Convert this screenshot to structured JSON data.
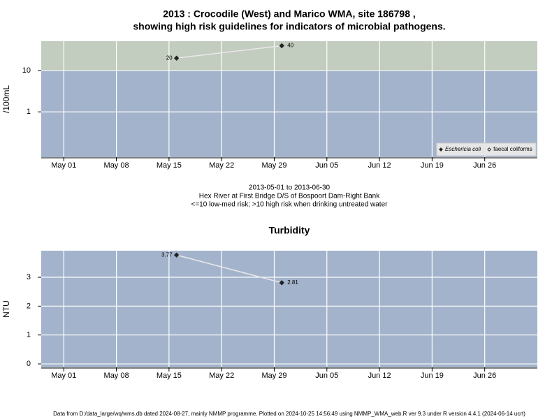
{
  "chart_data": [
    {
      "type": "line",
      "title": [
        "2013 : Crocodile (West) and Marico WMA, site 186798 ,",
        "showing high risk guidelines for indicators of microbial pathogens."
      ],
      "y_label": "/100mL",
      "log_scale": true,
      "x": [
        "2013-05-16",
        "2013-05-30"
      ],
      "series": [
        {
          "name": "Eschericia coli",
          "color": "#222222",
          "marker": "filled",
          "values": [
            20,
            40
          ]
        },
        {
          "name": "faecal coliforms",
          "color": "#222222",
          "marker": "open",
          "values": [
            null,
            null
          ]
        }
      ],
      "xlim": [
        "2013-04-28",
        "2013-07-03"
      ],
      "xticks": [
        {
          "value": "2013-05-01",
          "label": "May 01"
        },
        {
          "value": "2013-05-08",
          "label": "May 08"
        },
        {
          "value": "2013-05-15",
          "label": "May 15"
        },
        {
          "value": "2013-05-22",
          "label": "May 22"
        },
        {
          "value": "2013-05-29",
          "label": "May 29"
        },
        {
          "value": "2013-06-05",
          "label": "Jun 05"
        },
        {
          "value": "2013-06-12",
          "label": "Jun 12"
        },
        {
          "value": "2013-06-19",
          "label": "Jun 19"
        },
        {
          "value": "2013-06-26",
          "label": "Jun 26"
        }
      ],
      "ylim": [
        0.08,
        51.5
      ],
      "yticks": [
        1,
        10
      ],
      "threshold": 10,
      "band_colors": {
        "below": "#a3b3cb",
        "above": "#c2ccbf"
      },
      "grid": true,
      "legend": "bottom right",
      "notes": [
        "2013-05-01 to 2013-06-30",
        "Hex River at First Bridge D/S of Bospoort Dam-Right Bank",
        "<=10 low-med risk; >10 high risk when drinking untreated water"
      ]
    },
    {
      "type": "line",
      "title": [
        "Turbidity"
      ],
      "y_label": "NTU",
      "log_scale": false,
      "x": [
        "2013-05-16",
        "2013-05-30"
      ],
      "series": [
        {
          "color": "#222222",
          "marker": "filled",
          "values": [
            3.77,
            2.81
          ]
        }
      ],
      "xlim": [
        "2013-04-28",
        "2013-07-03"
      ],
      "xticks": [
        {
          "value": "2013-05-01",
          "label": "May 01"
        },
        {
          "value": "2013-05-08",
          "label": "May 08"
        },
        {
          "value": "2013-05-15",
          "label": "May 15"
        },
        {
          "value": "2013-05-22",
          "label": "May 22"
        },
        {
          "value": "2013-05-29",
          "label": "May 29"
        },
        {
          "value": "2013-06-05",
          "label": "Jun 05"
        },
        {
          "value": "2013-06-12",
          "label": "Jun 12"
        },
        {
          "value": "2013-06-19",
          "label": "Jun 19"
        },
        {
          "value": "2013-06-26",
          "label": "Jun 26"
        }
      ],
      "ylim": [
        -0.12,
        3.92
      ],
      "yticks": [
        0,
        1,
        2,
        3
      ],
      "band_colors": {
        "below": "#a3b3cb"
      },
      "grid": true
    }
  ],
  "footer": "Data from D:/data_large/wq/wms.db dated 2024-08-27, mainly NMMP programme. Plotted on 2024-10-25 14:56:49 using NMMP_WMA_web.R ver 9.3 under R version 4.4.1 (2024-06-14 ucrt)"
}
